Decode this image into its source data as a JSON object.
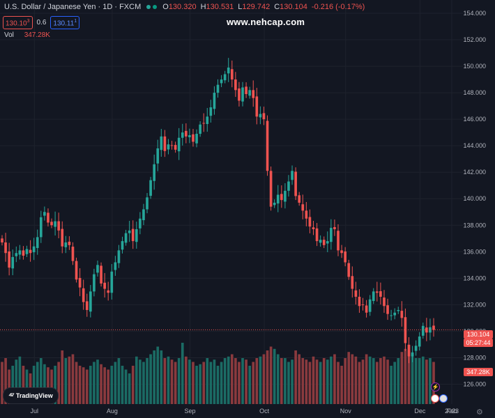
{
  "header": {
    "symbol_title": "U.S. Dollar / Japanese Yen · 1D · FXCM",
    "ohlc": [
      {
        "key": "O",
        "value": "130.320"
      },
      {
        "key": "H",
        "value": "130.531"
      },
      {
        "key": "L",
        "value": "129.742"
      },
      {
        "key": "C",
        "value": "130.104"
      }
    ],
    "change": "-0.216 (-0.17%)"
  },
  "quote": {
    "sell": "130.10",
    "sell_sup": "3",
    "spread": "0.6",
    "buy": "130.11",
    "buy_sup": "1"
  },
  "volume_legend": {
    "label": "Vol",
    "value": "347.28K"
  },
  "watermark": "www.nehcap.com",
  "logo_text": "TradingView",
  "price_badges": {
    "price": "130.104",
    "countdown": "05:27:44",
    "volume": "347.28K"
  },
  "colors": {
    "background": "#131722",
    "up": "#26a69a",
    "down": "#ef5350",
    "up_volume": "#1b6b64",
    "down_volume": "#8a3a3e",
    "grid": "#1e222d",
    "axis_text": "#b2b5be",
    "price_line": "#ef5350"
  },
  "icons": [
    "lightning-icon",
    "flag-icon",
    "gear-icon",
    "tradingview-logo"
  ],
  "chart_data": {
    "type": "candlestick",
    "symbol": "USDJPY",
    "timeframe": "1D",
    "x_tick_labels": [
      "Jul",
      "Aug",
      "Sep",
      "Oct",
      "Nov",
      "Dec",
      "2023",
      "Feb"
    ],
    "y_tick_labels": [
      "126.000",
      "128.000",
      "130.000",
      "132.000",
      "134.000",
      "136.000",
      "138.000",
      "140.000",
      "142.000",
      "144.000",
      "146.000",
      "148.000",
      "150.000",
      "152.000",
      "154.000"
    ],
    "ylim": [
      124.5,
      155
    ],
    "grid": true,
    "last_price": 130.104,
    "closes": [
      136.7,
      135.9,
      134.8,
      135.6,
      135.9,
      136.1,
      135.7,
      136.2,
      135.9,
      136.4,
      137.1,
      138.6,
      139.0,
      138.2,
      138.0,
      138.3,
      137.6,
      136.4,
      136.7,
      136.5,
      135.3,
      133.9,
      133.3,
      132.2,
      131.6,
      133.0,
      134.3,
      135.0,
      133.6,
      133.2,
      132.9,
      134.5,
      135.2,
      136.1,
      136.8,
      137.4,
      137.6,
      136.8,
      137.7,
      138.5,
      139.2,
      140.1,
      141.4,
      142.6,
      143.8,
      144.7,
      143.6,
      144.1,
      144.0,
      143.7,
      144.6,
      145.0,
      144.7,
      144.8,
      144.3,
      144.9,
      145.6,
      145.7,
      146.2,
      146.9,
      148.0,
      148.6,
      149.0,
      149.4,
      149.9,
      149.0,
      148.2,
      147.4,
      148.4,
      147.9,
      148.2,
      147.6,
      146.2,
      146.4,
      146.0,
      142.1,
      139.4,
      139.7,
      140.3,
      139.9,
      140.6,
      141.3,
      142.1,
      140.2,
      139.7,
      139.1,
      138.5,
      137.9,
      137.7,
      136.8,
      136.9,
      136.5,
      136.8,
      137.8,
      137.7,
      136.1,
      135.9,
      135.2,
      134.1,
      133.2,
      132.6,
      131.9,
      132.0,
      131.4,
      132.4,
      133.0,
      132.9,
      132.6,
      131.9,
      131.3,
      131.2,
      131.4,
      131.6,
      131.0,
      129.1,
      128.1,
      128.4,
      128.9,
      129.6,
      130.4,
      129.9,
      130.3,
      130.1
    ],
    "volumes_relative": [
      0.55,
      0.6,
      0.45,
      0.5,
      0.58,
      0.62,
      0.5,
      0.45,
      0.4,
      0.5,
      0.55,
      0.6,
      0.52,
      0.48,
      0.45,
      0.5,
      0.55,
      0.7,
      0.6,
      0.62,
      0.65,
      0.55,
      0.5,
      0.48,
      0.45,
      0.5,
      0.55,
      0.58,
      0.52,
      0.48,
      0.45,
      0.5,
      0.55,
      0.6,
      0.5,
      0.45,
      0.4,
      0.5,
      0.62,
      0.58,
      0.55,
      0.6,
      0.65,
      0.7,
      0.75,
      0.7,
      0.6,
      0.62,
      0.58,
      0.55,
      0.6,
      0.8,
      0.62,
      0.58,
      0.55,
      0.5,
      0.52,
      0.55,
      0.6,
      0.55,
      0.58,
      0.5,
      0.55,
      0.6,
      0.62,
      0.65,
      0.6,
      0.55,
      0.6,
      0.58,
      0.5,
      0.55,
      0.6,
      0.62,
      0.65,
      0.7,
      0.75,
      0.72,
      0.65,
      0.6,
      0.6,
      0.55,
      0.58,
      0.7,
      0.65,
      0.6,
      0.58,
      0.55,
      0.62,
      0.58,
      0.55,
      0.6,
      0.58,
      0.62,
      0.65,
      0.55,
      0.5,
      0.6,
      0.68,
      0.65,
      0.62,
      0.55,
      0.58,
      0.65,
      0.62,
      0.6,
      0.55,
      0.6,
      0.62,
      0.58,
      0.5,
      0.55,
      0.6,
      0.68,
      0.72,
      0.7,
      0.65,
      0.6,
      0.6,
      0.62,
      0.58,
      0.6,
      0.55
    ]
  }
}
